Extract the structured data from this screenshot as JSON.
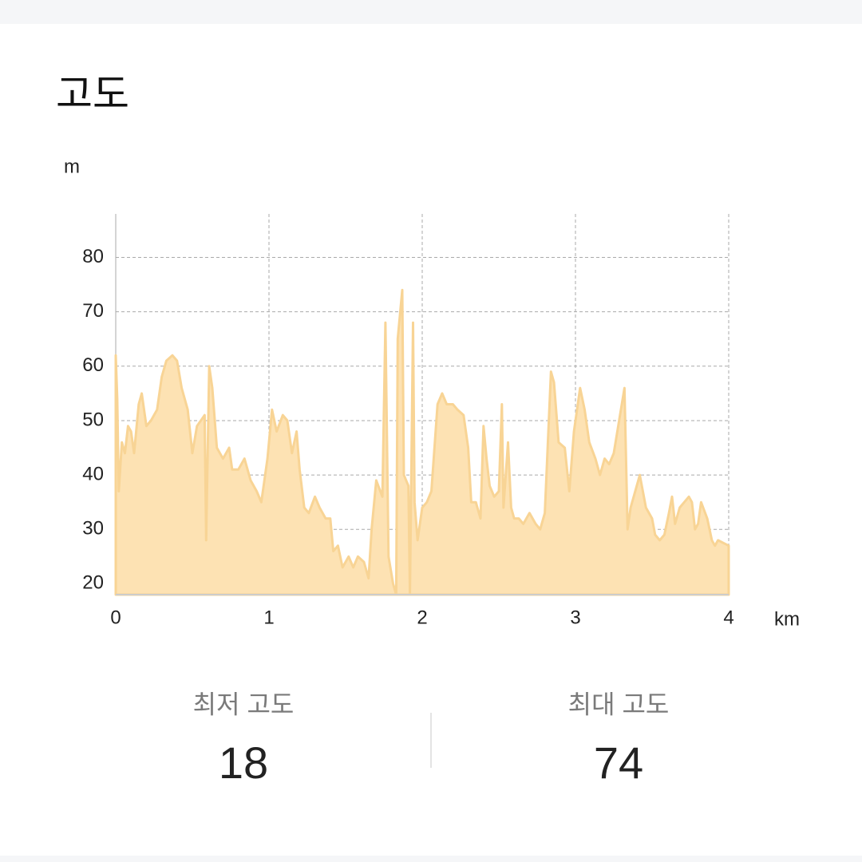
{
  "header": {
    "title": "고도"
  },
  "chart_data": {
    "type": "area",
    "y_unit": "m",
    "x_unit": "km",
    "color": "#fde2b3",
    "line_color": "#f8d495",
    "xlim": [
      0,
      4
    ],
    "xticks": [
      0,
      1,
      2,
      3,
      4
    ],
    "ylim": [
      18,
      88
    ],
    "yticks": [
      20,
      30,
      40,
      50,
      60,
      70,
      80
    ],
    "grid": true,
    "x": [
      0.0,
      0.01,
      0.02,
      0.04,
      0.06,
      0.08,
      0.1,
      0.12,
      0.15,
      0.17,
      0.2,
      0.23,
      0.27,
      0.3,
      0.33,
      0.37,
      0.4,
      0.43,
      0.47,
      0.5,
      0.53,
      0.58,
      0.59,
      0.61,
      0.63,
      0.66,
      0.7,
      0.74,
      0.76,
      0.8,
      0.84,
      0.88,
      0.92,
      0.95,
      0.99,
      1.02,
      1.05,
      1.09,
      1.12,
      1.15,
      1.18,
      1.2,
      1.23,
      1.26,
      1.3,
      1.33,
      1.37,
      1.4,
      1.42,
      1.45,
      1.48,
      1.52,
      1.55,
      1.58,
      1.62,
      1.65,
      1.67,
      1.7,
      1.74,
      1.76,
      1.78,
      1.81,
      1.83,
      1.84,
      1.87,
      1.88,
      1.91,
      1.92,
      1.94,
      1.95,
      1.97,
      2.0,
      2.03,
      2.06,
      2.1,
      2.13,
      2.16,
      2.2,
      2.23,
      2.27,
      2.3,
      2.32,
      2.35,
      2.38,
      2.4,
      2.42,
      2.44,
      2.47,
      2.5,
      2.52,
      2.53,
      2.56,
      2.58,
      2.6,
      2.63,
      2.66,
      2.7,
      2.74,
      2.77,
      2.8,
      2.84,
      2.86,
      2.89,
      2.93,
      2.96,
      2.99,
      3.03,
      3.06,
      3.09,
      3.13,
      3.16,
      3.19,
      3.22,
      3.25,
      3.32,
      3.34,
      3.36,
      3.4,
      3.42,
      3.46,
      3.5,
      3.52,
      3.55,
      3.58,
      3.61,
      3.63,
      3.65,
      3.68,
      3.71,
      3.74,
      3.76,
      3.78,
      3.8,
      3.82,
      3.86,
      3.89,
      3.91,
      3.93,
      4.0
    ],
    "values": [
      62,
      54,
      37,
      46,
      44,
      49,
      48,
      44,
      53,
      55,
      49,
      50,
      52,
      58,
      61,
      62,
      61,
      56,
      52,
      44,
      49,
      51,
      28,
      60,
      56,
      45,
      43,
      45,
      41,
      41,
      43,
      39,
      37,
      35,
      43,
      52,
      48,
      51,
      50,
      44,
      48,
      41,
      34,
      33,
      36,
      34,
      32,
      32,
      26,
      27,
      23,
      25,
      23,
      25,
      24,
      21,
      30,
      39,
      36,
      68,
      25,
      20,
      18,
      65,
      74,
      40,
      38,
      18,
      68,
      35,
      28,
      34,
      35,
      37,
      53,
      55,
      53,
      53,
      52,
      51,
      45,
      35,
      35,
      32,
      49,
      43,
      38,
      36,
      37,
      53,
      34,
      46,
      34,
      32,
      32,
      31,
      33,
      31,
      30,
      33,
      59,
      57,
      46,
      45,
      37,
      48,
      56,
      52,
      46,
      43,
      40,
      43,
      42,
      44,
      56,
      30,
      34,
      38,
      40,
      34,
      32,
      29,
      28,
      29,
      33,
      36,
      31,
      34,
      35,
      36,
      35,
      30,
      31,
      35,
      32,
      28,
      27,
      28,
      27
    ]
  },
  "stats": [
    {
      "label": "최저 고도",
      "value": 18
    },
    {
      "label": "최대 고도",
      "value": 74
    }
  ]
}
